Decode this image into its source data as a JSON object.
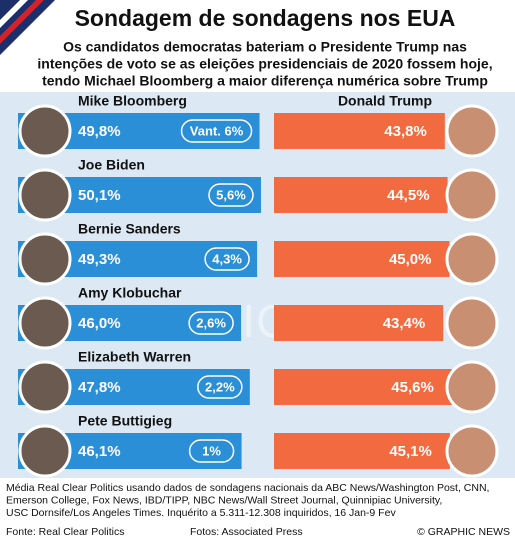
{
  "chart_data": {
    "type": "paired_bar",
    "title": "Sondagem de sondagens nos EUA",
    "subtitle": [
      "Os candidatos democratas bateriam o Presidente Trump nas",
      "intenções de voto se as eleições presidenciais de 2020 fossem hoje,",
      "tendo Michael Bloomberg a maior diferença numérica sobre Trump"
    ],
    "categories": [
      "Mike Bloomberg",
      "Joe Biden",
      "Bernie Sanders",
      "Amy Klobuchar",
      "Elizabeth Warren",
      "Pete Buttigieg"
    ],
    "series": [
      {
        "color": "#2b8fd8",
        "values": [
          49.8,
          50.1,
          49.3,
          46.0,
          47.8,
          46.1
        ],
        "value_labels": [
          "49,8%",
          "50,1%",
          "49,3%",
          "46,0%",
          "47,8%",
          "46,1%"
        ]
      },
      {
        "name": "Donald Trump",
        "color": "#f26a3f",
        "values": [
          43.8,
          44.5,
          45.0,
          43.4,
          45.6,
          45.1
        ],
        "value_labels": [
          "43,8%",
          "44,5%",
          "45,0%",
          "43,4%",
          "45,6%",
          "45,1%"
        ]
      }
    ],
    "margins": {
      "values": [
        6,
        5.6,
        4.3,
        2.6,
        2.2,
        1
      ],
      "value_labels": [
        "Vant. 6%",
        "5,6%",
        "4,3%",
        "2,6%",
        "2,2%",
        "1%"
      ]
    },
    "note": [
      "Média Real Clear Politics usando dados de sondagens nacionais da ABC News/Washington Post, CNN,",
      "Emerson College, Fox News, IBD/TIPP, NBC News/Wall Street Journal, Quinnipiac University,",
      "USC Dornsife/Los Angeles Times. Inquérito a 5.311-12.308 inquiridos, 16 Jan-9 Fev"
    ],
    "source": "Fonte: Real Clear Politics",
    "photos": "Fotos: Associated Press",
    "credit": "© GRAPHIC NEWS",
    "watermark": "GRAPHIC NEWS"
  }
}
